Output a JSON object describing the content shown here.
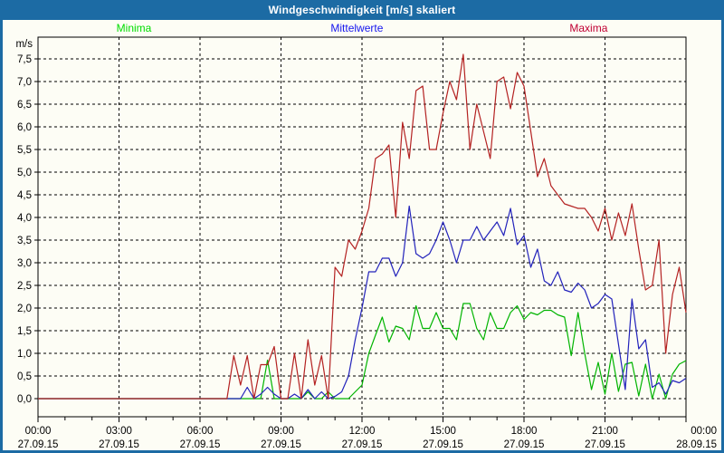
{
  "window": {
    "title": "Windgeschwindigkeit [m/s] skaliert"
  },
  "colors": {
    "frame": "#1c6ba4",
    "titlebar": "#1c6ba4",
    "title_text": "#ffffff",
    "background": "#fdfdf5",
    "grid": "#000000",
    "axis": "#000000"
  },
  "legend": [
    {
      "label": "Minima",
      "color": "#00dd00",
      "x_percent": 18.5
    },
    {
      "label": "Mittelwerte",
      "color": "#1515ee",
      "x_percent": 49.3
    },
    {
      "label": "Maxima",
      "color": "#c00033",
      "x_percent": 81.3
    }
  ],
  "chart_data": {
    "type": "line",
    "title": "Windgeschwindigkeit [m/s] skaliert",
    "y_unit": "m/s",
    "ylim": [
      0,
      7.5
    ],
    "y_tick_step": 0.5,
    "y_tick_labels_top_down": [
      "7,5",
      "7,0",
      "6,5",
      "6,0",
      "5,5",
      "5,0",
      "4,5",
      "4,0",
      "3,5",
      "3,0",
      "2,5",
      "2,0",
      "1,5",
      "1,0",
      "0,5",
      "0,0"
    ],
    "x_hours_range": [
      0,
      24
    ],
    "interval_minutes": 15,
    "x_major_tick_hours": 3,
    "x_minor_tick_hours": 1,
    "x_major_ticks": [
      {
        "time": "00:00",
        "date": "27.09.15"
      },
      {
        "time": "03:00",
        "date": "27.09.15"
      },
      {
        "time": "06:00",
        "date": "27.09.15"
      },
      {
        "time": "09:00",
        "date": "27.09.15"
      },
      {
        "time": "12:00",
        "date": "27.09.15"
      },
      {
        "time": "15:00",
        "date": "27.09.15"
      },
      {
        "time": "18:00",
        "date": "27.09.15"
      },
      {
        "time": "21:00",
        "date": "27.09.15"
      },
      {
        "time": "00:00",
        "date": "28.09.15"
      }
    ],
    "grid": "dashed",
    "series": [
      {
        "name": "Minima",
        "color": "#00b400",
        "values": [
          0,
          0,
          0,
          0,
          0,
          0,
          0,
          0,
          0,
          0,
          0,
          0,
          0,
          0,
          0,
          0,
          0,
          0,
          0,
          0,
          0,
          0,
          0,
          0,
          0,
          0,
          0,
          0,
          0,
          0,
          0,
          0,
          0,
          0,
          0.85,
          0,
          0,
          0,
          0,
          0,
          0.15,
          0,
          0,
          0.15,
          0,
          0,
          0,
          0.15,
          0.3,
          1.0,
          1.4,
          1.8,
          1.25,
          1.6,
          1.55,
          1.3,
          2.05,
          1.55,
          1.55,
          1.9,
          1.55,
          1.55,
          1.3,
          2.1,
          2.1,
          1.55,
          1.3,
          1.9,
          1.55,
          1.55,
          1.9,
          2.05,
          1.75,
          1.9,
          1.85,
          1.95,
          1.95,
          1.85,
          1.8,
          0.95,
          1.9,
          1.0,
          0.2,
          0.8,
          0.1,
          1.0,
          0.16,
          0.76,
          0.8,
          0.06,
          0.76,
          0,
          0.54,
          0,
          0.54,
          0.76,
          0.84
        ]
      },
      {
        "name": "Mittelwerte",
        "color": "#2222bb",
        "values": [
          0,
          0,
          0,
          0,
          0,
          0,
          0,
          0,
          0,
          0,
          0,
          0,
          0,
          0,
          0,
          0,
          0,
          0,
          0,
          0,
          0,
          0,
          0,
          0,
          0,
          0,
          0,
          0,
          0,
          0,
          0,
          0.25,
          0,
          0.1,
          0.25,
          0.1,
          0,
          0,
          0.1,
          0,
          0.2,
          0,
          0.15,
          0,
          0.05,
          0.15,
          0.5,
          1.3,
          2.0,
          2.8,
          2.8,
          3.1,
          3.1,
          2.7,
          3.0,
          4.25,
          3.2,
          3.1,
          3.2,
          3.5,
          3.9,
          3.5,
          3.0,
          3.5,
          3.5,
          3.8,
          3.5,
          3.7,
          3.9,
          3.6,
          4.2,
          3.4,
          3.6,
          2.9,
          3.3,
          2.6,
          2.5,
          2.8,
          2.4,
          2.35,
          2.55,
          2.4,
          2.0,
          2.1,
          2.3,
          2.2,
          1.2,
          0.2,
          2.2,
          1.1,
          1.3,
          0.25,
          0.35,
          0.1,
          0.4,
          0.35,
          0.45
        ]
      },
      {
        "name": "Maxima",
        "color": "#b42222",
        "values": [
          0,
          0,
          0,
          0,
          0,
          0,
          0,
          0,
          0,
          0,
          0,
          0,
          0,
          0,
          0,
          0,
          0,
          0,
          0,
          0,
          0,
          0,
          0,
          0,
          0,
          0,
          0,
          0,
          0,
          0.95,
          0.3,
          0.95,
          0,
          0.75,
          0.75,
          1.15,
          0,
          0,
          1.0,
          0,
          1.3,
          0.3,
          0.95,
          0,
          2.9,
          2.7,
          3.5,
          3.3,
          3.7,
          4.2,
          5.3,
          5.4,
          5.6,
          4.0,
          6.1,
          5.3,
          6.8,
          6.9,
          5.5,
          5.5,
          6.3,
          7.0,
          6.6,
          7.6,
          5.5,
          6.5,
          5.9,
          5.3,
          7.0,
          7.1,
          6.4,
          7.2,
          6.9,
          5.9,
          4.9,
          5.3,
          4.7,
          4.5,
          4.3,
          4.25,
          4.2,
          4.2,
          4.0,
          3.7,
          4.2,
          3.5,
          4.1,
          3.6,
          4.3,
          3.3,
          2.4,
          2.5,
          3.5,
          1.0,
          2.3,
          2.9,
          1.9
        ]
      }
    ]
  }
}
